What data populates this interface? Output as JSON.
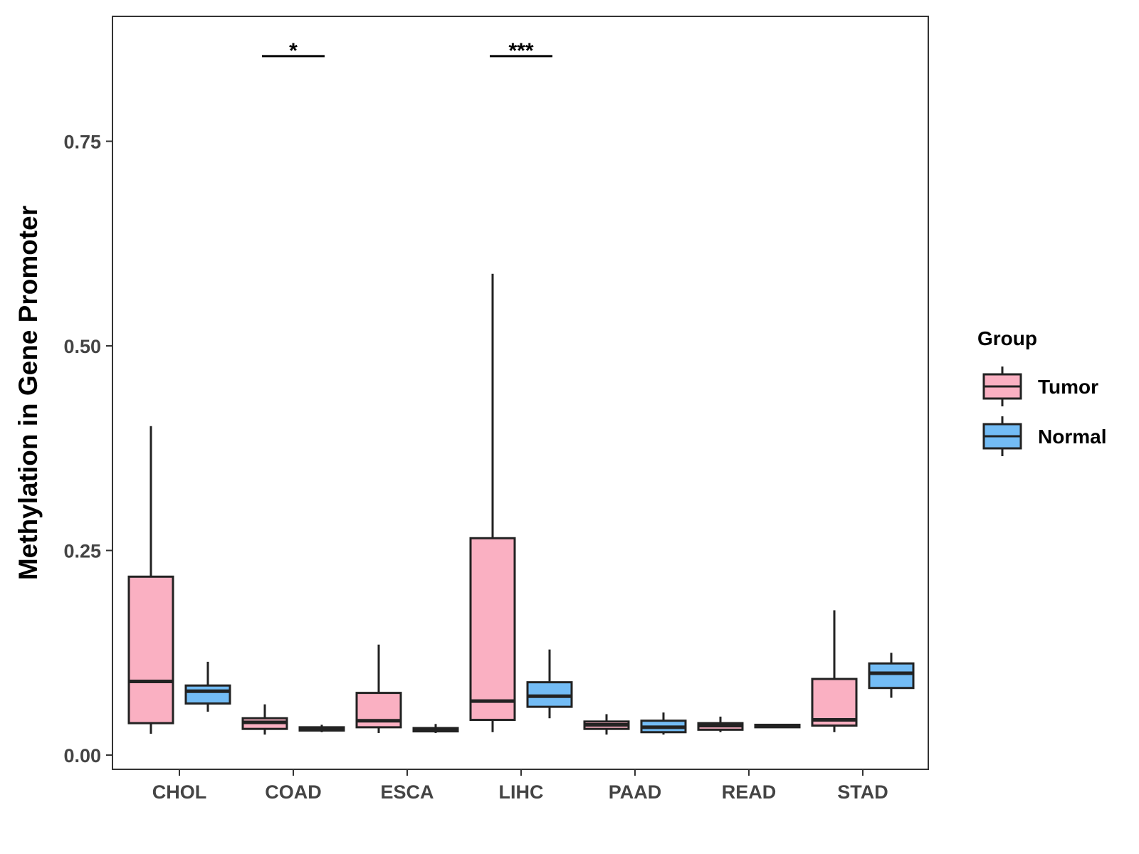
{
  "chart_data": {
    "type": "boxplot",
    "title": "",
    "xlabel": "",
    "ylabel": "Methylation in Gene Promoter",
    "ylim": [
      -0.018,
      0.9
    ],
    "yticks": [
      0.0,
      0.25,
      0.5,
      0.75
    ],
    "ytick_labels": [
      "0.00",
      "0.25",
      "0.50",
      "0.75"
    ],
    "categories": [
      "CHOL",
      "COAD",
      "ESCA",
      "LIHC",
      "PAAD",
      "READ",
      "STAD"
    ],
    "legend": {
      "title": "Group",
      "position": "right",
      "entries": [
        "Tumor",
        "Normal"
      ]
    },
    "series": [
      {
        "name": "Tumor",
        "color": "#FAB0C2",
        "boxes": [
          {
            "category": "CHOL",
            "min": 0.026,
            "q1": 0.039,
            "median": 0.09,
            "q3": 0.218,
            "max": 0.402
          },
          {
            "category": "COAD",
            "min": 0.025,
            "q1": 0.032,
            "median": 0.04,
            "q3": 0.045,
            "max": 0.062
          },
          {
            "category": "ESCA",
            "min": 0.027,
            "q1": 0.034,
            "median": 0.042,
            "q3": 0.076,
            "max": 0.135
          },
          {
            "category": "LIHC",
            "min": 0.028,
            "q1": 0.043,
            "median": 0.066,
            "q3": 0.265,
            "max": 0.588
          },
          {
            "category": "PAAD",
            "min": 0.025,
            "q1": 0.032,
            "median": 0.037,
            "q3": 0.041,
            "max": 0.05
          },
          {
            "category": "READ",
            "min": 0.028,
            "q1": 0.031,
            "median": 0.036,
            "q3": 0.039,
            "max": 0.047
          },
          {
            "category": "STAD",
            "min": 0.028,
            "q1": 0.036,
            "median": 0.043,
            "q3": 0.093,
            "max": 0.177
          }
        ]
      },
      {
        "name": "Normal",
        "color": "#73BCF5",
        "boxes": [
          {
            "category": "CHOL",
            "min": 0.053,
            "q1": 0.063,
            "median": 0.078,
            "q3": 0.085,
            "max": 0.114
          },
          {
            "category": "COAD",
            "min": 0.028,
            "q1": 0.03,
            "median": 0.032,
            "q3": 0.034,
            "max": 0.037
          },
          {
            "category": "ESCA",
            "min": 0.027,
            "q1": 0.029,
            "median": 0.031,
            "q3": 0.033,
            "max": 0.038
          },
          {
            "category": "LIHC",
            "min": 0.045,
            "q1": 0.059,
            "median": 0.072,
            "q3": 0.089,
            "max": 0.129
          },
          {
            "category": "PAAD",
            "min": 0.025,
            "q1": 0.028,
            "median": 0.034,
            "q3": 0.042,
            "max": 0.052
          },
          {
            "category": "READ",
            "min": 0.034,
            "q1": 0.034,
            "median": 0.036,
            "q3": 0.037,
            "max": 0.037
          },
          {
            "category": "STAD",
            "min": 0.07,
            "q1": 0.082,
            "median": 0.1,
            "q3": 0.112,
            "max": 0.125
          }
        ]
      }
    ],
    "annotations": [
      {
        "category": "COAD",
        "y": 0.854,
        "label": "*"
      },
      {
        "category": "LIHC",
        "y": 0.854,
        "label": "***"
      }
    ]
  }
}
